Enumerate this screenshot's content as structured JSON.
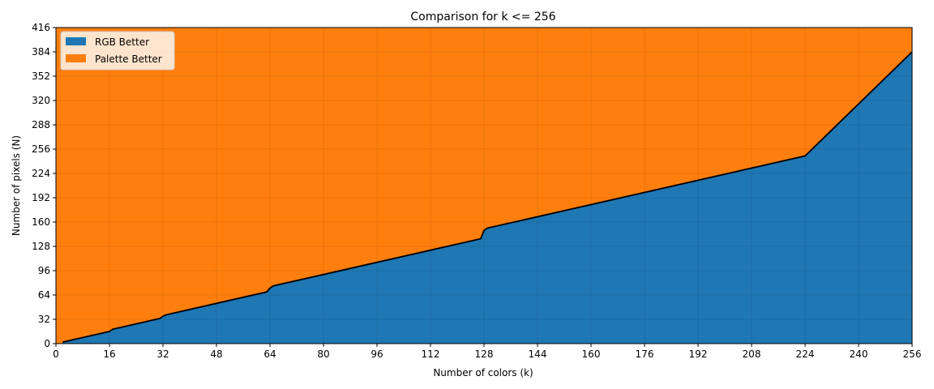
{
  "chart_data": {
    "type": "area",
    "title": "Comparison for k <= 256",
    "xlabel": "Number of colors (k)",
    "ylabel": "Number of pixels (N)",
    "xlim": [
      0,
      256
    ],
    "ylim": [
      0,
      416
    ],
    "xticks": [
      0,
      16,
      32,
      48,
      64,
      80,
      96,
      112,
      128,
      144,
      160,
      176,
      192,
      208,
      224,
      240,
      256
    ],
    "yticks": [
      0,
      32,
      64,
      96,
      128,
      160,
      192,
      224,
      256,
      288,
      320,
      352,
      384,
      416
    ],
    "grid": true,
    "legend_position": "top-left",
    "series": [
      {
        "name": "RGB Better",
        "color": "#1f77b4",
        "role": "below-boundary"
      },
      {
        "name": "Palette Better",
        "color": "#ff7f0e",
        "role": "above-boundary"
      }
    ],
    "boundary": {
      "color": "#000000",
      "x": [
        2,
        4,
        6,
        8,
        10,
        12,
        14,
        16,
        17,
        18,
        20,
        24,
        28,
        31,
        32,
        33,
        34,
        40,
        48,
        56,
        63,
        64,
        65,
        66,
        72,
        80,
        96,
        112,
        127,
        128,
        129,
        130,
        144,
        160,
        192,
        224,
        256
      ],
      "y": [
        2,
        4,
        6,
        8,
        10,
        12,
        14,
        16,
        19,
        20,
        22,
        26,
        30,
        33,
        36,
        38,
        39,
        45,
        53,
        61,
        68,
        73,
        76,
        77,
        83,
        91,
        107,
        123,
        138,
        149,
        152,
        153,
        167,
        183,
        215,
        247,
        384
      ]
    }
  }
}
